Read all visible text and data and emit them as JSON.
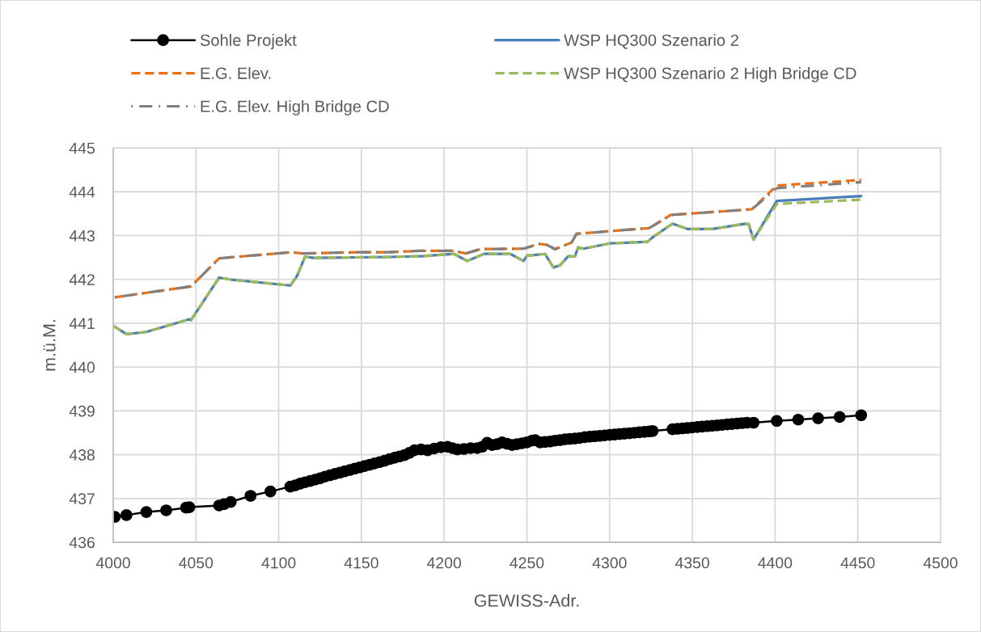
{
  "chart_data": {
    "type": "line",
    "xlabel": "GEWISS-Adr.",
    "ylabel": "m.ü.M.",
    "xlim": [
      4000,
      4500
    ],
    "xticks": [
      4000,
      4050,
      4100,
      4150,
      4200,
      4250,
      4300,
      4350,
      4400,
      4450,
      4500
    ],
    "ylim": [
      436,
      445
    ],
    "yticks": [
      436,
      437,
      438,
      439,
      440,
      441,
      442,
      443,
      444,
      445
    ],
    "grid": true,
    "legend": "top",
    "series": [
      {
        "name": "Sohle Projekt",
        "color": "#000000",
        "marker": "circle",
        "line_style": "solid",
        "x": [
          4001,
          4008,
          4020,
          4032,
          4044,
          4046,
          4064,
          4067,
          4071,
          4083,
          4095,
          4107,
          4110,
          4113,
          4116,
          4119,
          4122,
          4125,
          4128,
          4131,
          4134,
          4137,
          4140,
          4143,
          4146,
          4149,
          4152,
          4155,
          4158,
          4161,
          4164,
          4167,
          4170,
          4173,
          4176,
          4179,
          4182,
          4186,
          4190,
          4194,
          4198,
          4202,
          4205,
          4208,
          4212,
          4216,
          4220,
          4223,
          4226,
          4229,
          4232,
          4235,
          4238,
          4241,
          4244,
          4247,
          4250,
          4253,
          4255,
          4258,
          4261,
          4264,
          4267,
          4270,
          4273,
          4276,
          4279,
          4282,
          4285,
          4288,
          4291,
          4294,
          4297,
          4300,
          4303,
          4306,
          4309,
          4312,
          4315,
          4318,
          4321,
          4324,
          4326,
          4338,
          4341,
          4344,
          4347,
          4350,
          4353,
          4356,
          4359,
          4362,
          4365,
          4368,
          4371,
          4374,
          4377,
          4380,
          4383,
          4387,
          4401,
          4414,
          4426,
          4439,
          4452
        ],
        "values": [
          436.58,
          436.62,
          436.69,
          436.73,
          436.79,
          436.8,
          436.84,
          436.87,
          436.92,
          437.06,
          437.16,
          437.27,
          437.3,
          437.34,
          437.37,
          437.4,
          437.43,
          437.46,
          437.5,
          437.53,
          437.56,
          437.59,
          437.62,
          437.65,
          437.68,
          437.71,
          437.74,
          437.77,
          437.8,
          437.83,
          437.86,
          437.9,
          437.93,
          437.96,
          437.99,
          438.04,
          438.1,
          438.12,
          438.1,
          438.14,
          438.17,
          438.18,
          438.15,
          438.12,
          438.13,
          438.15,
          438.15,
          438.18,
          438.27,
          438.22,
          438.24,
          438.28,
          438.25,
          438.22,
          438.24,
          438.26,
          438.28,
          438.32,
          438.33,
          438.28,
          438.29,
          438.3,
          438.32,
          438.33,
          438.35,
          438.36,
          438.37,
          438.38,
          438.4,
          438.41,
          438.42,
          438.43,
          438.44,
          438.45,
          438.46,
          438.47,
          438.48,
          438.49,
          438.5,
          438.51,
          438.52,
          438.53,
          438.54,
          438.58,
          438.59,
          438.6,
          438.61,
          438.62,
          438.63,
          438.64,
          438.65,
          438.66,
          438.67,
          438.68,
          438.69,
          438.7,
          438.71,
          438.72,
          438.73,
          438.73,
          438.77,
          438.8,
          438.83,
          438.86,
          438.9
        ]
      },
      {
        "name": "WSP HQ300 Szenario 2",
        "color": "#4a7ebb",
        "line_style": "solid",
        "x": [
          4000,
          4008,
          4020,
          4046,
          4047,
          4064,
          4072,
          4107,
          4111,
          4116,
          4121,
          4166,
          4187,
          4206,
          4214,
          4224,
          4240,
          4248,
          4250,
          4261,
          4266,
          4270,
          4275,
          4279,
          4281,
          4284,
          4300,
          4323,
          4326,
          4338,
          4347,
          4362,
          4382,
          4384,
          4387,
          4401,
          4452
        ],
        "values": [
          440.94,
          440.75,
          440.8,
          441.09,
          441.07,
          442.04,
          441.99,
          441.86,
          442.07,
          442.52,
          442.49,
          442.51,
          442.53,
          442.58,
          442.42,
          442.58,
          442.58,
          442.42,
          442.54,
          442.58,
          442.27,
          442.32,
          442.53,
          442.52,
          442.73,
          442.7,
          442.82,
          442.86,
          442.96,
          443.27,
          443.15,
          443.15,
          443.27,
          443.26,
          442.91,
          443.79,
          443.9
        ]
      },
      {
        "name": "E.G. Elev.",
        "color": "#ed7014",
        "line_style": "dashed",
        "x": [
          4001,
          4047,
          4064,
          4108,
          4114,
          4147,
          4166,
          4185,
          4206,
          4213,
          4222,
          4248,
          4257,
          4262,
          4267,
          4277,
          4280,
          4324,
          4337,
          4386,
          4401,
          4452
        ],
        "values": [
          441.59,
          441.84,
          442.48,
          442.62,
          442.59,
          442.62,
          442.62,
          442.65,
          442.65,
          442.59,
          442.69,
          442.7,
          442.81,
          442.79,
          442.69,
          442.84,
          443.04,
          443.17,
          443.47,
          443.6,
          444.14,
          444.27
        ]
      },
      {
        "name": "WSP HQ300 Szenario 2 High Bridge CD",
        "color": "#9bbb59",
        "line_style": "dashed",
        "x": [
          4000,
          4008,
          4020,
          4046,
          4047,
          4064,
          4072,
          4107,
          4111,
          4116,
          4121,
          4166,
          4187,
          4206,
          4214,
          4224,
          4240,
          4248,
          4250,
          4261,
          4266,
          4270,
          4275,
          4279,
          4281,
          4284,
          4300,
          4323,
          4326,
          4338,
          4347,
          4362,
          4382,
          4384,
          4387,
          4401,
          4452
        ],
        "values": [
          440.94,
          440.75,
          440.8,
          441.09,
          441.07,
          442.04,
          441.99,
          441.86,
          442.07,
          442.52,
          442.49,
          442.51,
          442.53,
          442.58,
          442.42,
          442.58,
          442.58,
          442.42,
          442.54,
          442.58,
          442.27,
          442.32,
          442.53,
          442.52,
          442.73,
          442.7,
          442.82,
          442.86,
          442.96,
          443.27,
          443.15,
          443.15,
          443.27,
          443.26,
          442.91,
          443.72,
          443.82
        ]
      },
      {
        "name": "E.G. Elev. High Bridge CD",
        "color": "#7f7f7f",
        "line_style": "dashdot",
        "x": [
          4001,
          4047,
          4064,
          4108,
          4114,
          4147,
          4166,
          4185,
          4206,
          4213,
          4222,
          4248,
          4257,
          4262,
          4267,
          4277,
          4280,
          4324,
          4337,
          4386,
          4401,
          4452
        ],
        "values": [
          441.59,
          441.84,
          442.48,
          442.62,
          442.59,
          442.62,
          442.62,
          442.65,
          442.65,
          442.59,
          442.69,
          442.7,
          442.81,
          442.79,
          442.69,
          442.84,
          443.04,
          443.17,
          443.47,
          443.6,
          444.08,
          444.22
        ]
      }
    ]
  }
}
